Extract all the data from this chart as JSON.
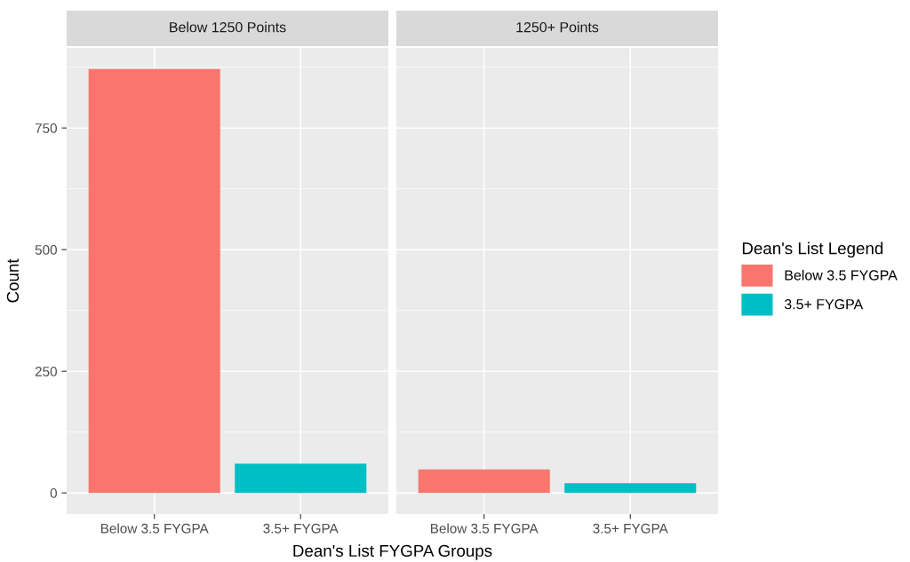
{
  "chart_data": [
    {
      "type": "bar",
      "title": "Below 1250 Points",
      "xlabel": "Dean's List FYGPA Groups",
      "ylabel": "Count",
      "categories": [
        "Below 3.5 FYGPA",
        "3.5+ FYGPA"
      ],
      "values": [
        871,
        60
      ],
      "colors": [
        "#f8766d",
        "#00bfc4"
      ],
      "ylim": [
        -43.5,
        914.5
      ],
      "yticks": [
        0,
        250,
        500,
        750
      ],
      "grid": true,
      "legend": false
    },
    {
      "type": "bar",
      "title": "1250+ Points",
      "legend_title": "Dean's List Legend",
      "categories": [
        "Below 3.5 FYGPA",
        "3.5+ FYGPA"
      ],
      "series": [
        {
          "name": "Below 3.5 FYGPA",
          "color": "#f8766d",
          "values": [
            48,
            null
          ]
        },
        {
          "name": "3.5+ FYGPA",
          "color": "#00bfc4",
          "values": [
            null,
            20
          ]
        }
      ],
      "ylim": [
        -43.5,
        914.5
      ],
      "yticks": [
        0,
        250,
        500,
        750
      ],
      "grid": true,
      "legend": "right",
      "tick_labels": "x"
    }
  ]
}
